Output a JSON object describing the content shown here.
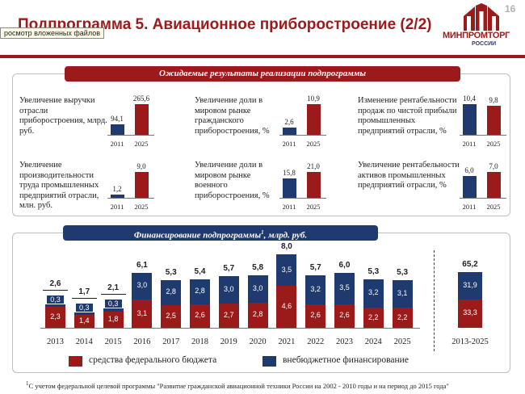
{
  "header": {
    "title": "Подпрограмма 5. Авиационное приборостроение (2/2)",
    "tooltip": "росмотр вложенных файлов",
    "page_number": "16",
    "logo": {
      "name": "МИНПРОМТОРГ",
      "sub": "РОССИИ"
    }
  },
  "colors": {
    "red": "#9b1b1b",
    "navy": "#1f3a6e"
  },
  "expected_results": {
    "banner": "Ожидаемые результаты реализации подпрограммы",
    "metrics": [
      {
        "label": "Увеличение выручки отрасли приборостроения, млрд. руб.",
        "years": [
          "2011",
          "2025"
        ],
        "values": [
          94.1,
          265.6
        ],
        "labels": [
          "94,1",
          "265,6"
        ]
      },
      {
        "label": "Увеличение доли в мировом рынке гражданского приборостроения, %",
        "years": [
          "2011",
          "2025"
        ],
        "values": [
          2.6,
          10.9
        ],
        "labels": [
          "2,6",
          "10,9"
        ]
      },
      {
        "label": "Изменение рентабельности продаж по чистой прибыли промышленных предприятий отрасли, %",
        "years": [
          "2011",
          "2025"
        ],
        "values": [
          10.4,
          9.8
        ],
        "labels": [
          "10,4",
          "9,8"
        ]
      },
      {
        "label": "Увеличение производительности труда промышленных предприятий отрасли, млн. руб.",
        "years": [
          "2011",
          "2025"
        ],
        "values": [
          1.2,
          9.0
        ],
        "labels": [
          "1,2",
          "9,0"
        ]
      },
      {
        "label": "Увеличение доли в мировом рынке военного приборостроения, %",
        "years": [
          "2011",
          "2025"
        ],
        "values": [
          15.8,
          21.0
        ],
        "labels": [
          "15,8",
          "21,0"
        ]
      },
      {
        "label": "Увеличение рентабельности активов промышленных предприятий отрасли, %",
        "years": [
          "2011",
          "2025"
        ],
        "values": [
          6.0,
          7.0
        ],
        "labels": [
          "6,0",
          "7,0"
        ]
      }
    ]
  },
  "chart_data": {
    "type": "bar",
    "stacked": true,
    "title": "Финансирование подпрограммы",
    "title_sup": "1",
    "title_unit": ", млрд. руб.",
    "categories": [
      "2013",
      "2014",
      "2015",
      "2016",
      "2017",
      "2018",
      "2019",
      "2020",
      "2021",
      "2022",
      "2023",
      "2024",
      "2025"
    ],
    "series": [
      {
        "name": "средства федерального бюджета",
        "color": "#9b1b1b",
        "values": [
          2.3,
          1.4,
          1.8,
          3.1,
          2.5,
          2.6,
          2.7,
          2.8,
          4.6,
          2.6,
          2.6,
          2.2,
          2.2
        ],
        "labels": [
          "2,3",
          "1,4",
          "1,8",
          "3,1",
          "2,5",
          "2,6",
          "2,7",
          "2,8",
          "4,6",
          "2,6",
          "2,6",
          "2,2",
          "2,2"
        ]
      },
      {
        "name": "внебюджетное финансирование",
        "color": "#1f3a6e",
        "values": [
          0.3,
          0.3,
          0.3,
          3.0,
          2.8,
          2.8,
          3.0,
          3.0,
          3.5,
          3.2,
          3.5,
          3.2,
          3.1
        ],
        "labels": [
          "0,3",
          "0,3",
          "0,3",
          "3,0",
          "2,8",
          "2,8",
          "3,0",
          "3,0",
          "3,5",
          "3,2",
          "3,5",
          "3,2",
          "3,1"
        ]
      }
    ],
    "totals": [
      2.6,
      1.7,
      2.1,
      6.1,
      5.3,
      5.4,
      5.7,
      5.8,
      8.0,
      5.7,
      6.0,
      5.3,
      5.3
    ],
    "total_labels": [
      "2,6",
      "1,7",
      "2,1",
      "6,1",
      "5,3",
      "5,4",
      "5,7",
      "5,8",
      "8,0",
      "5,7",
      "6,0",
      "5,3",
      "5,3"
    ],
    "summary": {
      "category": "2013-2025",
      "values": [
        33.3,
        31.9
      ],
      "labels": [
        "33,3",
        "31,9"
      ],
      "total": 65.2,
      "total_label": "65,2"
    },
    "legend": [
      "средства федерального бюджета",
      "внебюджетное финансирование"
    ]
  },
  "footnote": {
    "sup": "1",
    "text": "С учетом федеральной целевой программы \"Развитие гражданской авиационной техники России на 2002 - 2010 годы и на период до 2015 года\""
  }
}
